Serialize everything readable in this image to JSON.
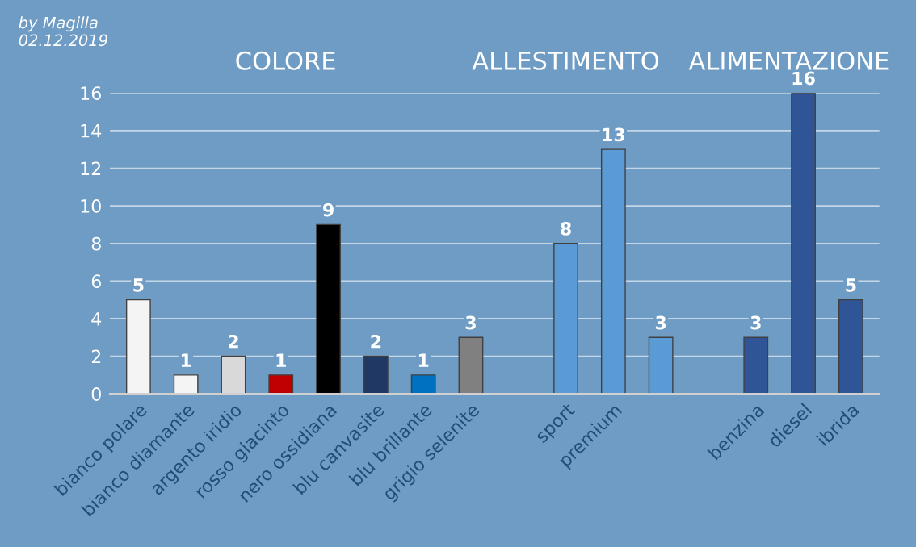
{
  "chart_data": {
    "type": "bar",
    "categories": [
      "bianco polare",
      "bianco diamante",
      "argento iridio",
      "rosso giacinto",
      "nero ossidiana",
      "blu canvasite",
      "blu brillante",
      "grigio selenite",
      null,
      "sport",
      "premium",
      null,
      null,
      "benzina",
      "diesel",
      "ibrida"
    ],
    "values": [
      5,
      1,
      2,
      1,
      9,
      2,
      1,
      3,
      null,
      8,
      13,
      3,
      null,
      3,
      16,
      5
    ],
    "colors": [
      "#f4f4f4",
      "#f4f4f4",
      "#d9d9d9",
      "#c00000",
      "#000000",
      "#1f3864",
      "#0070c0",
      "#808080",
      null,
      "#5b9bd5",
      "#5b9bd5",
      "#5b9bd5",
      null,
      "#2f5597",
      "#2f5597",
      "#2f5597"
    ],
    "ylim": [
      0,
      16
    ],
    "yticks": [
      0,
      2,
      4,
      6,
      8,
      10,
      12,
      14,
      16
    ],
    "grid": "y",
    "data_labels": true,
    "annotations": [
      "by Magilla\n02.12.2019",
      "COLORE",
      "ALLESTIMENTO",
      "ALIMENTAZIONE"
    ]
  }
}
